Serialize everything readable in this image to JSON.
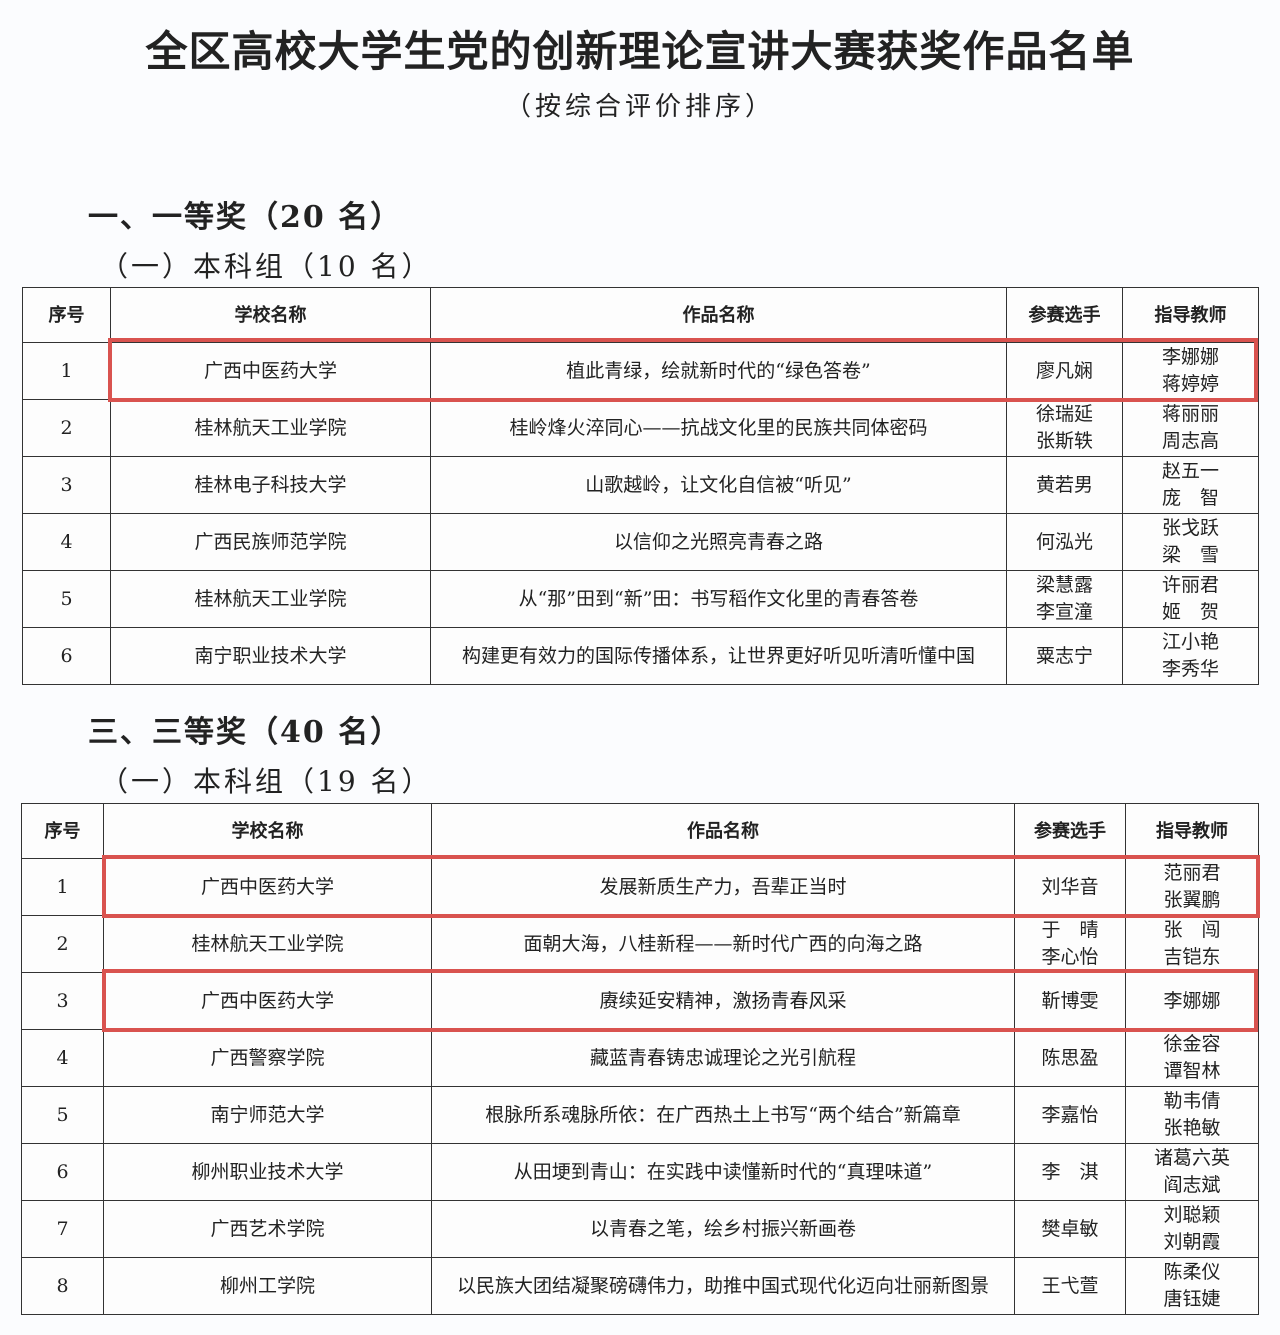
{
  "title": "全区高校大学生党的创新理论宣讲大赛获奖作品名单",
  "subtitle": "（按综合评价排序）",
  "highlight_color": "#d9534f",
  "headers": [
    "序号",
    "学校名称",
    "作品名称",
    "参赛选手",
    "指导教师"
  ],
  "sections": [
    {
      "heading": "一、一等奖（20 名）",
      "group": "（一）本科组（10 名）",
      "rows": [
        [
          "1",
          "广西中医药大学",
          "植此青绿，绘就新时代的“绿色答卷”",
          "廖凡娴",
          "李娜娜\n蒋婷婷"
        ],
        [
          "2",
          "桂林航天工业学院",
          "桂岭烽火淬同心——抗战文化里的民族共同体密码",
          "徐瑞延\n张斯轶",
          "蒋丽丽\n周志高"
        ],
        [
          "3",
          "桂林电子科技大学",
          "山歌越岭，让文化自信被“听见”",
          "黄若男",
          "赵五一\n庞　智"
        ],
        [
          "4",
          "广西民族师范学院",
          "以信仰之光照亮青春之路",
          "何泓光",
          "张戈跃\n梁　雪"
        ],
        [
          "5",
          "桂林航天工业学院",
          "从“那”田到“新”田：书写稻作文化里的青春答卷",
          "梁慧露\n李宣潼",
          "许丽君\n姬　贺"
        ],
        [
          "6",
          "南宁职业技术大学",
          "构建更有效力的国际传播体系，让世界更好听见听清听懂中国",
          "粟志宁",
          "江小艳\n李秀华"
        ]
      ]
    },
    {
      "heading": "三、三等奖（40 名）",
      "group": "（一）本科组（19 名）",
      "rows": [
        [
          "1",
          "广西中医药大学",
          "发展新质生产力，吾辈正当时",
          "刘华音",
          "范丽君\n张翼鹏"
        ],
        [
          "2",
          "桂林航天工业学院",
          "面朝大海，八桂新程——新时代广西的向海之路",
          "于　晴\n李心怡",
          "张　闯\n吉铠东"
        ],
        [
          "3",
          "广西中医药大学",
          "赓续延安精神，激扬青春风采",
          "靳博雯",
          "李娜娜"
        ],
        [
          "4",
          "广西警察学院",
          "藏蓝青春铸忠诚理论之光引航程",
          "陈思盈",
          "徐金容\n谭智林"
        ],
        [
          "5",
          "南宁师范大学",
          "根脉所系魂脉所依：在广西热土上书写“两个结合”新篇章",
          "李嘉怡",
          "勒韦倩\n张艳敏"
        ],
        [
          "6",
          "柳州职业技术大学",
          "从田埂到青山：在实践中读懂新时代的“真理味道”",
          "李　淇",
          "诸葛六英\n阎志斌"
        ],
        [
          "7",
          "广西艺术学院",
          "以青春之笔，绘乡村振兴新画卷",
          "樊卓敏",
          "刘聪颖\n刘朝霞"
        ],
        [
          "8",
          "柳州工学院",
          "以民族大团结凝聚磅礴伟力，助推中国式现代化迈向壮丽新图景",
          "王弋萱",
          "陈柔仪\n唐钰婕"
        ]
      ]
    }
  ]
}
